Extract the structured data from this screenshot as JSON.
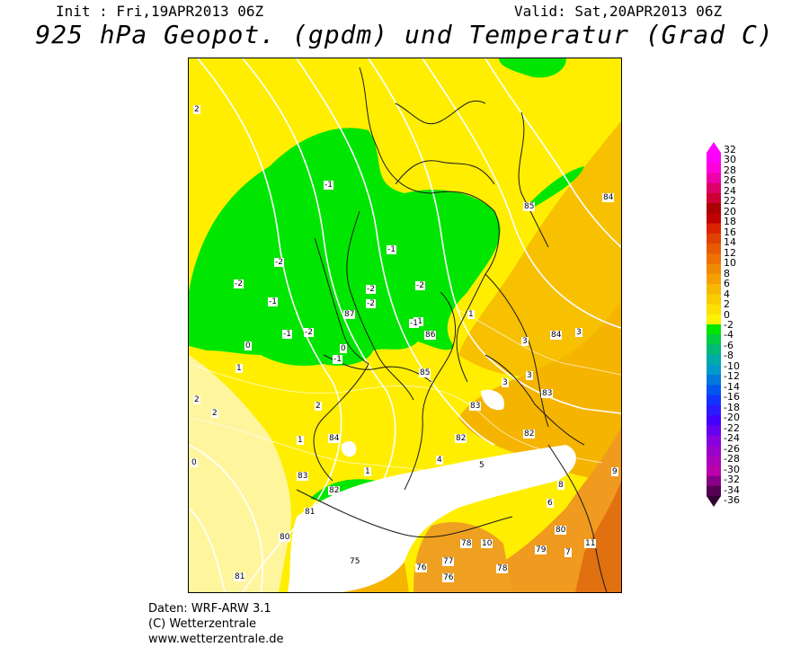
{
  "header": {
    "init": "Init : Fri,19APR2013 06Z",
    "valid": "Valid: Sat,20APR2013 06Z",
    "title": "925 hPa Geopot. (gpdm) und Temperatur (Grad C)"
  },
  "footer": {
    "line1": "Daten: WRF-ARW 3.1",
    "line2": "(C) Wetterzentrale",
    "line3": "www.wetterzentrale.de"
  },
  "colors": {
    "yellow": "#ffee00",
    "light_yellow": "#fff176",
    "green": "#00e600",
    "orange_light": "#f5c542",
    "orange": "#f0a020",
    "orange_dark": "#e07010",
    "terrain_mask": "#ffffff"
  },
  "scale": {
    "labels": [
      "32",
      "30",
      "28",
      "26",
      "24",
      "22",
      "20",
      "18",
      "16",
      "14",
      "12",
      "10",
      "8",
      "6",
      "4",
      "2",
      "0",
      "-2",
      "-4",
      "-6",
      "-8",
      "-10",
      "-12",
      "-14",
      "-16",
      "-18",
      "-20",
      "-22",
      "-24",
      "-26",
      "-28",
      "-30",
      "-32",
      "-34",
      "-36"
    ]
  },
  "map_labels": {
    "temps": [
      "2",
      "-1",
      "-2",
      "-1",
      "-2",
      "-2",
      "-1",
      "-2",
      "-1",
      "-1",
      "-2",
      "-2",
      "-1",
      "0",
      "-1",
      "0",
      "1",
      "1",
      "2",
      "2",
      "3",
      "4",
      "5",
      "6",
      "7",
      "8",
      "9",
      "10",
      "11",
      "2",
      "1",
      "0",
      "1",
      "3",
      "3",
      "3"
    ],
    "geopot": [
      "87",
      "86",
      "85",
      "85",
      "84",
      "84",
      "84",
      "83",
      "83",
      "83",
      "82",
      "82",
      "82",
      "81",
      "81",
      "80",
      "80",
      "79",
      "78",
      "78",
      "77",
      "76",
      "76",
      "75"
    ]
  }
}
